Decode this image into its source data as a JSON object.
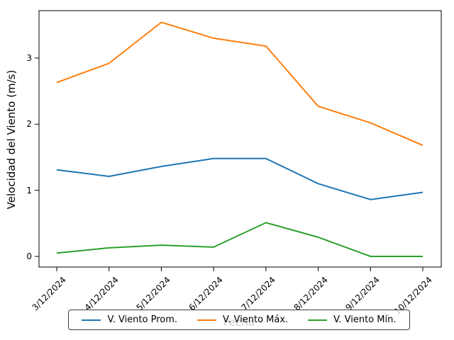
{
  "chart_data": {
    "type": "line",
    "title": "",
    "xlabel": "Fecha",
    "ylabel": "Velocidad del Viento (m/s)",
    "categories": [
      "3/12/2024",
      "4/12/2024",
      "5/12/2024",
      "6/12/2024",
      "7/12/2024",
      "8/12/2024",
      "9/12/2024",
      "10/12/2024"
    ],
    "series": [
      {
        "name": "V. Viento Prom.",
        "color": "#1f77b4",
        "values": [
          1.31,
          1.21,
          1.36,
          1.48,
          1.48,
          1.1,
          0.86,
          0.97
        ]
      },
      {
        "name": "V. Viento Máx.",
        "color": "#ff7f0e",
        "values": [
          2.63,
          2.92,
          3.54,
          3.3,
          3.18,
          2.27,
          2.02,
          1.68
        ]
      },
      {
        "name": "V. Viento Mín.",
        "color": "#2ca02c",
        "values": [
          0.05,
          0.13,
          0.17,
          0.14,
          0.51,
          0.29,
          0.0,
          0.0
        ]
      }
    ],
    "yticks": [
      0,
      1,
      2,
      3
    ],
    "ytick_labels": [
      "0",
      "1",
      "2",
      "3"
    ],
    "ylim": [
      -0.18,
      3.72
    ],
    "grid": false,
    "legend_position": "bottom",
    "axis_color": "#000000",
    "spine_box": true
  }
}
